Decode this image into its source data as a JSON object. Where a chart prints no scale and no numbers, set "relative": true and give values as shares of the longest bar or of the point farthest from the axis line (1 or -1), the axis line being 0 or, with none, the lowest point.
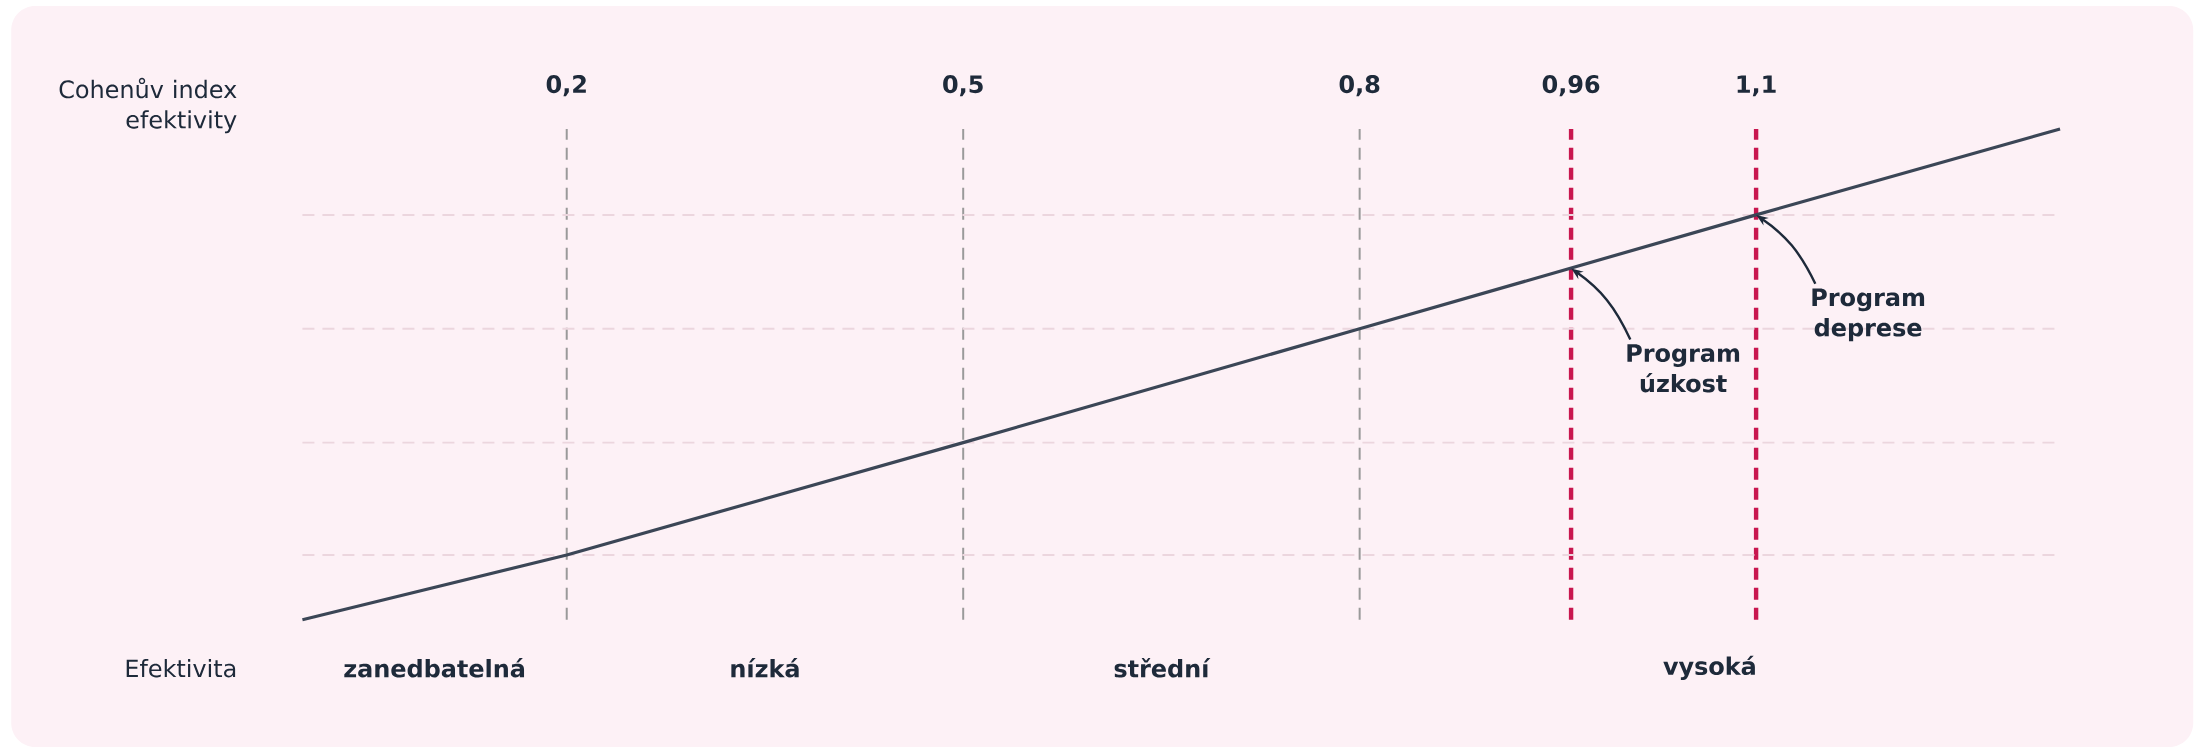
{
  "chart_data": {
    "type": "line",
    "xlabel": "Cohenův index efektivity",
    "relative": true,
    "x": [
      0,
      0.2,
      0.5,
      0.8,
      1.1,
      1.33
    ],
    "series": [
      {
        "color": "#3b4656",
        "values": [
          0,
          0.132,
          0.361,
          0.593,
          0.825,
          1
        ]
      }
    ],
    "xlim": [
      0,
      1.33
    ],
    "xticks": [
      {
        "value": 0.2,
        "label": "0,2"
      },
      {
        "value": 0.5,
        "label": "0,5"
      },
      {
        "value": 0.8,
        "label": "0,8"
      },
      {
        "value": 0.96,
        "label": "0,96"
      },
      {
        "value": 1.1,
        "label": "1,1"
      }
    ],
    "marker": "none",
    "line_style": "solid",
    "ref_lines": [
      {
        "axis": "x",
        "value": 0.2,
        "color": "#9a9a9a",
        "line_style": "dashed"
      },
      {
        "axis": "x",
        "value": 0.5,
        "color": "#9a9a9a",
        "line_style": "dashed"
      },
      {
        "axis": "x",
        "value": 0.8,
        "color": "#9a9a9a",
        "line_style": "dashed"
      },
      {
        "axis": "x",
        "value": 0.96,
        "color": "#c8174f",
        "line_style": "dashed"
      },
      {
        "axis": "x",
        "value": 1.1,
        "color": "#c8174f",
        "line_style": "dashed"
      },
      {
        "axis": "y",
        "value": 0.132,
        "color": "#ecd6de",
        "line_style": "dashed"
      },
      {
        "axis": "y",
        "value": 0.361,
        "color": "#ecd6de",
        "line_style": "dashed"
      },
      {
        "axis": "y",
        "value": 0.593,
        "color": "#ecd6de",
        "line_style": "dashed"
      },
      {
        "axis": "y",
        "value": 0.825,
        "color": "#ecd6de",
        "line_style": "dashed"
      }
    ],
    "annotations": [
      "Efektivita",
      "zanedbatelná",
      "nízká",
      "střední",
      "vysoká",
      {
        "text": "Program úzkost",
        "x": 0.96,
        "y": 0.716
      },
      {
        "text": "Program deprese",
        "x": 1.1,
        "y": 0.825
      }
    ]
  }
}
